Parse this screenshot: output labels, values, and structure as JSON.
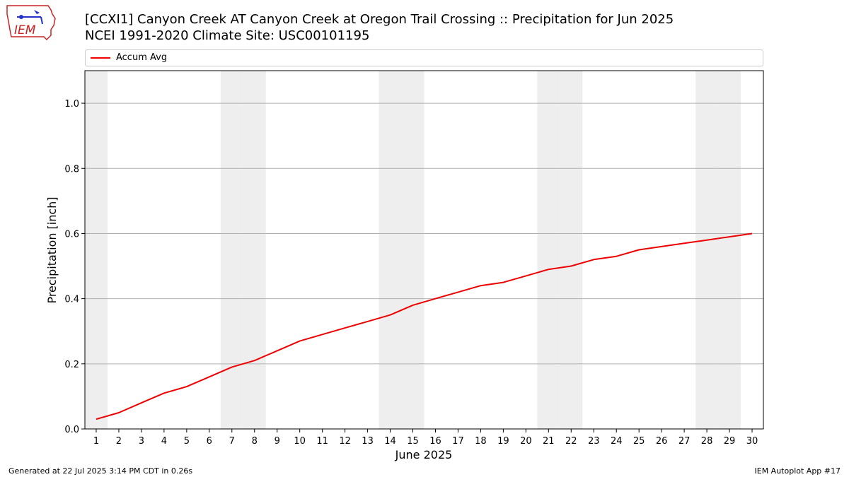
{
  "header": {
    "title_line1": "[CCXI1] Canyon Creek  AT Canyon Creek at Oregon Trail Crossing :: Precipitation for Jun 2025",
    "title_line2": "NCEI 1991-2020 Climate Site: USC00101195",
    "logo_text": "IEM"
  },
  "legend": {
    "label": "Accum Avg"
  },
  "footer": {
    "left": "Generated at 22 Jul 2025 3:14 PM CDT in 0.26s",
    "right": "IEM Autoplot App #17"
  },
  "colors": {
    "series": "#ee0000",
    "weekend_band": "#eeeeee",
    "grid": "#b0b0b0",
    "logo": "#cc2222"
  },
  "chart_data": {
    "type": "line",
    "xlabel": "June 2025",
    "ylabel": "Precipitation [inch]",
    "xlim": [
      0.5,
      30.5
    ],
    "ylim": [
      0,
      1.1
    ],
    "yticks": [
      0.0,
      0.2,
      0.4,
      0.6,
      0.8,
      1.0
    ],
    "ytick_labels": [
      "0.0",
      "0.2",
      "0.4",
      "0.6",
      "0.8",
      "1.0"
    ],
    "x": [
      1,
      2,
      3,
      4,
      5,
      6,
      7,
      8,
      9,
      10,
      11,
      12,
      13,
      14,
      15,
      16,
      17,
      18,
      19,
      20,
      21,
      22,
      23,
      24,
      25,
      26,
      27,
      28,
      29,
      30
    ],
    "xtick_labels": [
      "1",
      "2",
      "3",
      "4",
      "5",
      "6",
      "7",
      "8",
      "9",
      "10",
      "11",
      "12",
      "13",
      "14",
      "15",
      "16",
      "17",
      "18",
      "19",
      "20",
      "21",
      "22",
      "23",
      "24",
      "25",
      "26",
      "27",
      "28",
      "29",
      "30"
    ],
    "weekend_days": [
      1,
      7,
      8,
      14,
      15,
      21,
      22,
      28,
      29
    ],
    "grid": "y",
    "legend_position": "top",
    "series": [
      {
        "name": "Accum Avg",
        "color": "#ee0000",
        "values": [
          0.03,
          0.05,
          0.08,
          0.11,
          0.13,
          0.16,
          0.19,
          0.21,
          0.24,
          0.27,
          0.29,
          0.31,
          0.33,
          0.35,
          0.38,
          0.4,
          0.42,
          0.44,
          0.45,
          0.47,
          0.49,
          0.5,
          0.52,
          0.53,
          0.55,
          0.56,
          0.57,
          0.58,
          0.59,
          0.6
        ]
      }
    ]
  }
}
